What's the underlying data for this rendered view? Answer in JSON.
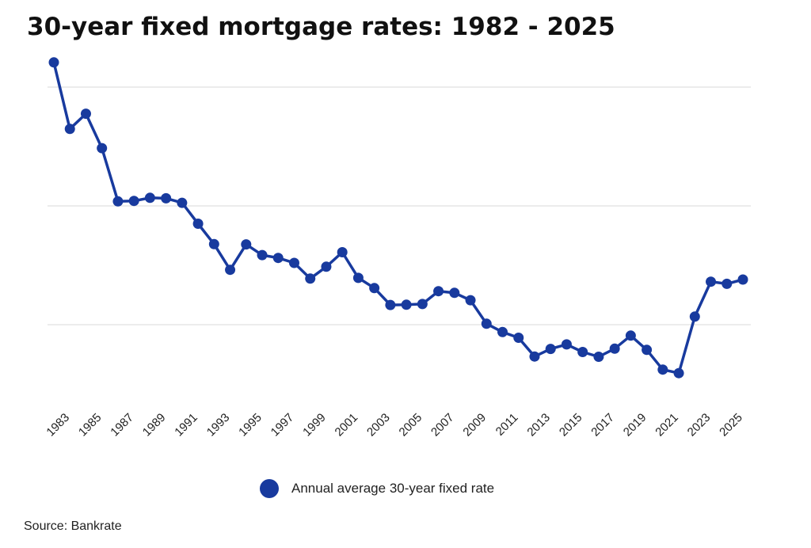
{
  "chart_data": {
    "type": "line",
    "title": "30-year fixed mortgage rates: 1982 - 2025",
    "source": "Source: Bankrate",
    "xlabel": "",
    "ylabel": "",
    "x": [
      1982,
      1983,
      1984,
      1985,
      1986,
      1987,
      1988,
      1989,
      1990,
      1991,
      1992,
      1993,
      1994,
      1995,
      1996,
      1997,
      1998,
      1999,
      2000,
      2001,
      2002,
      2003,
      2004,
      2005,
      2006,
      2007,
      2008,
      2009,
      2010,
      2011,
      2012,
      2013,
      2014,
      2015,
      2016,
      2017,
      2018,
      2019,
      2020,
      2021,
      2022,
      2023,
      2024,
      2025
    ],
    "x_tick_labels": [
      "1983",
      "1985",
      "1987",
      "1989",
      "1991",
      "1993",
      "1995",
      "1997",
      "1999",
      "2001",
      "2003",
      "2005",
      "2007",
      "2009",
      "2011",
      "2013",
      "2015",
      "2017",
      "2019",
      "2021",
      "2023",
      "2025"
    ],
    "x_tick_values": [
      1983,
      1985,
      1987,
      1989,
      1991,
      1993,
      1995,
      1997,
      1999,
      2001,
      2003,
      2005,
      2007,
      2009,
      2011,
      2013,
      2015,
      2017,
      2019,
      2021,
      2023,
      2025
    ],
    "series": [
      {
        "name": "Annual average 30-year fixed rate",
        "color": "#183a9e",
        "values": [
          16.04,
          13.24,
          13.88,
          12.43,
          10.19,
          10.21,
          10.34,
          10.32,
          10.13,
          9.25,
          8.39,
          7.31,
          8.38,
          7.93,
          7.81,
          7.6,
          6.94,
          7.44,
          8.05,
          6.97,
          6.54,
          5.83,
          5.84,
          5.87,
          6.41,
          6.34,
          6.03,
          5.04,
          4.69,
          4.45,
          3.66,
          3.98,
          4.17,
          3.85,
          3.65,
          3.99,
          4.54,
          3.94,
          3.11,
          2.96,
          5.34,
          6.81,
          6.72,
          6.9
        ]
      }
    ],
    "ylim": [
      0,
      18
    ],
    "y_gridlines": [
      5,
      10,
      15
    ],
    "y_tick_labels_shown": false,
    "grid": "horizontal",
    "legend_position": "bottom-center"
  }
}
